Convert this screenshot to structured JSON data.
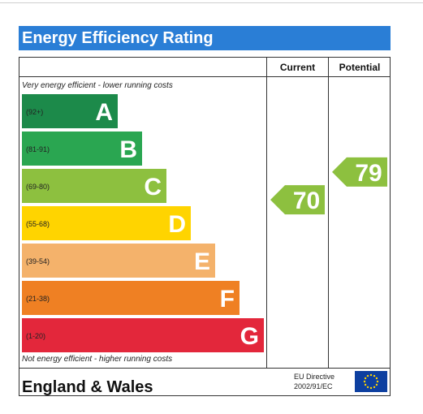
{
  "title": "Energy Efficiency Rating",
  "columns": {
    "current": "Current",
    "potential": "Potential"
  },
  "notes": {
    "top": "Very energy efficient - lower running costs",
    "bottom": "Not energy efficient - higher running costs"
  },
  "footer": {
    "region": "England & Wales",
    "directive_line1": "EU Directive",
    "directive_line2": "2002/91/EC",
    "flag_icon": "eu-flag-icon"
  },
  "chart_data": {
    "type": "bar",
    "categories": [
      "A",
      "B",
      "C",
      "D",
      "E",
      "F",
      "G"
    ],
    "ranges": [
      "(92+)",
      "(81-91)",
      "(69-80)",
      "(55-68)",
      "(39-54)",
      "(21-38)",
      "(1-20)"
    ],
    "colors": [
      "#1c8a4a",
      "#2aa651",
      "#8dc03f",
      "#ffd400",
      "#f4b26b",
      "#ef8023",
      "#e3273b"
    ],
    "current": {
      "value": 70,
      "band": "C",
      "color": "#8dc03f"
    },
    "potential": {
      "value": 79,
      "band": "C",
      "color": "#8dc03f"
    }
  }
}
